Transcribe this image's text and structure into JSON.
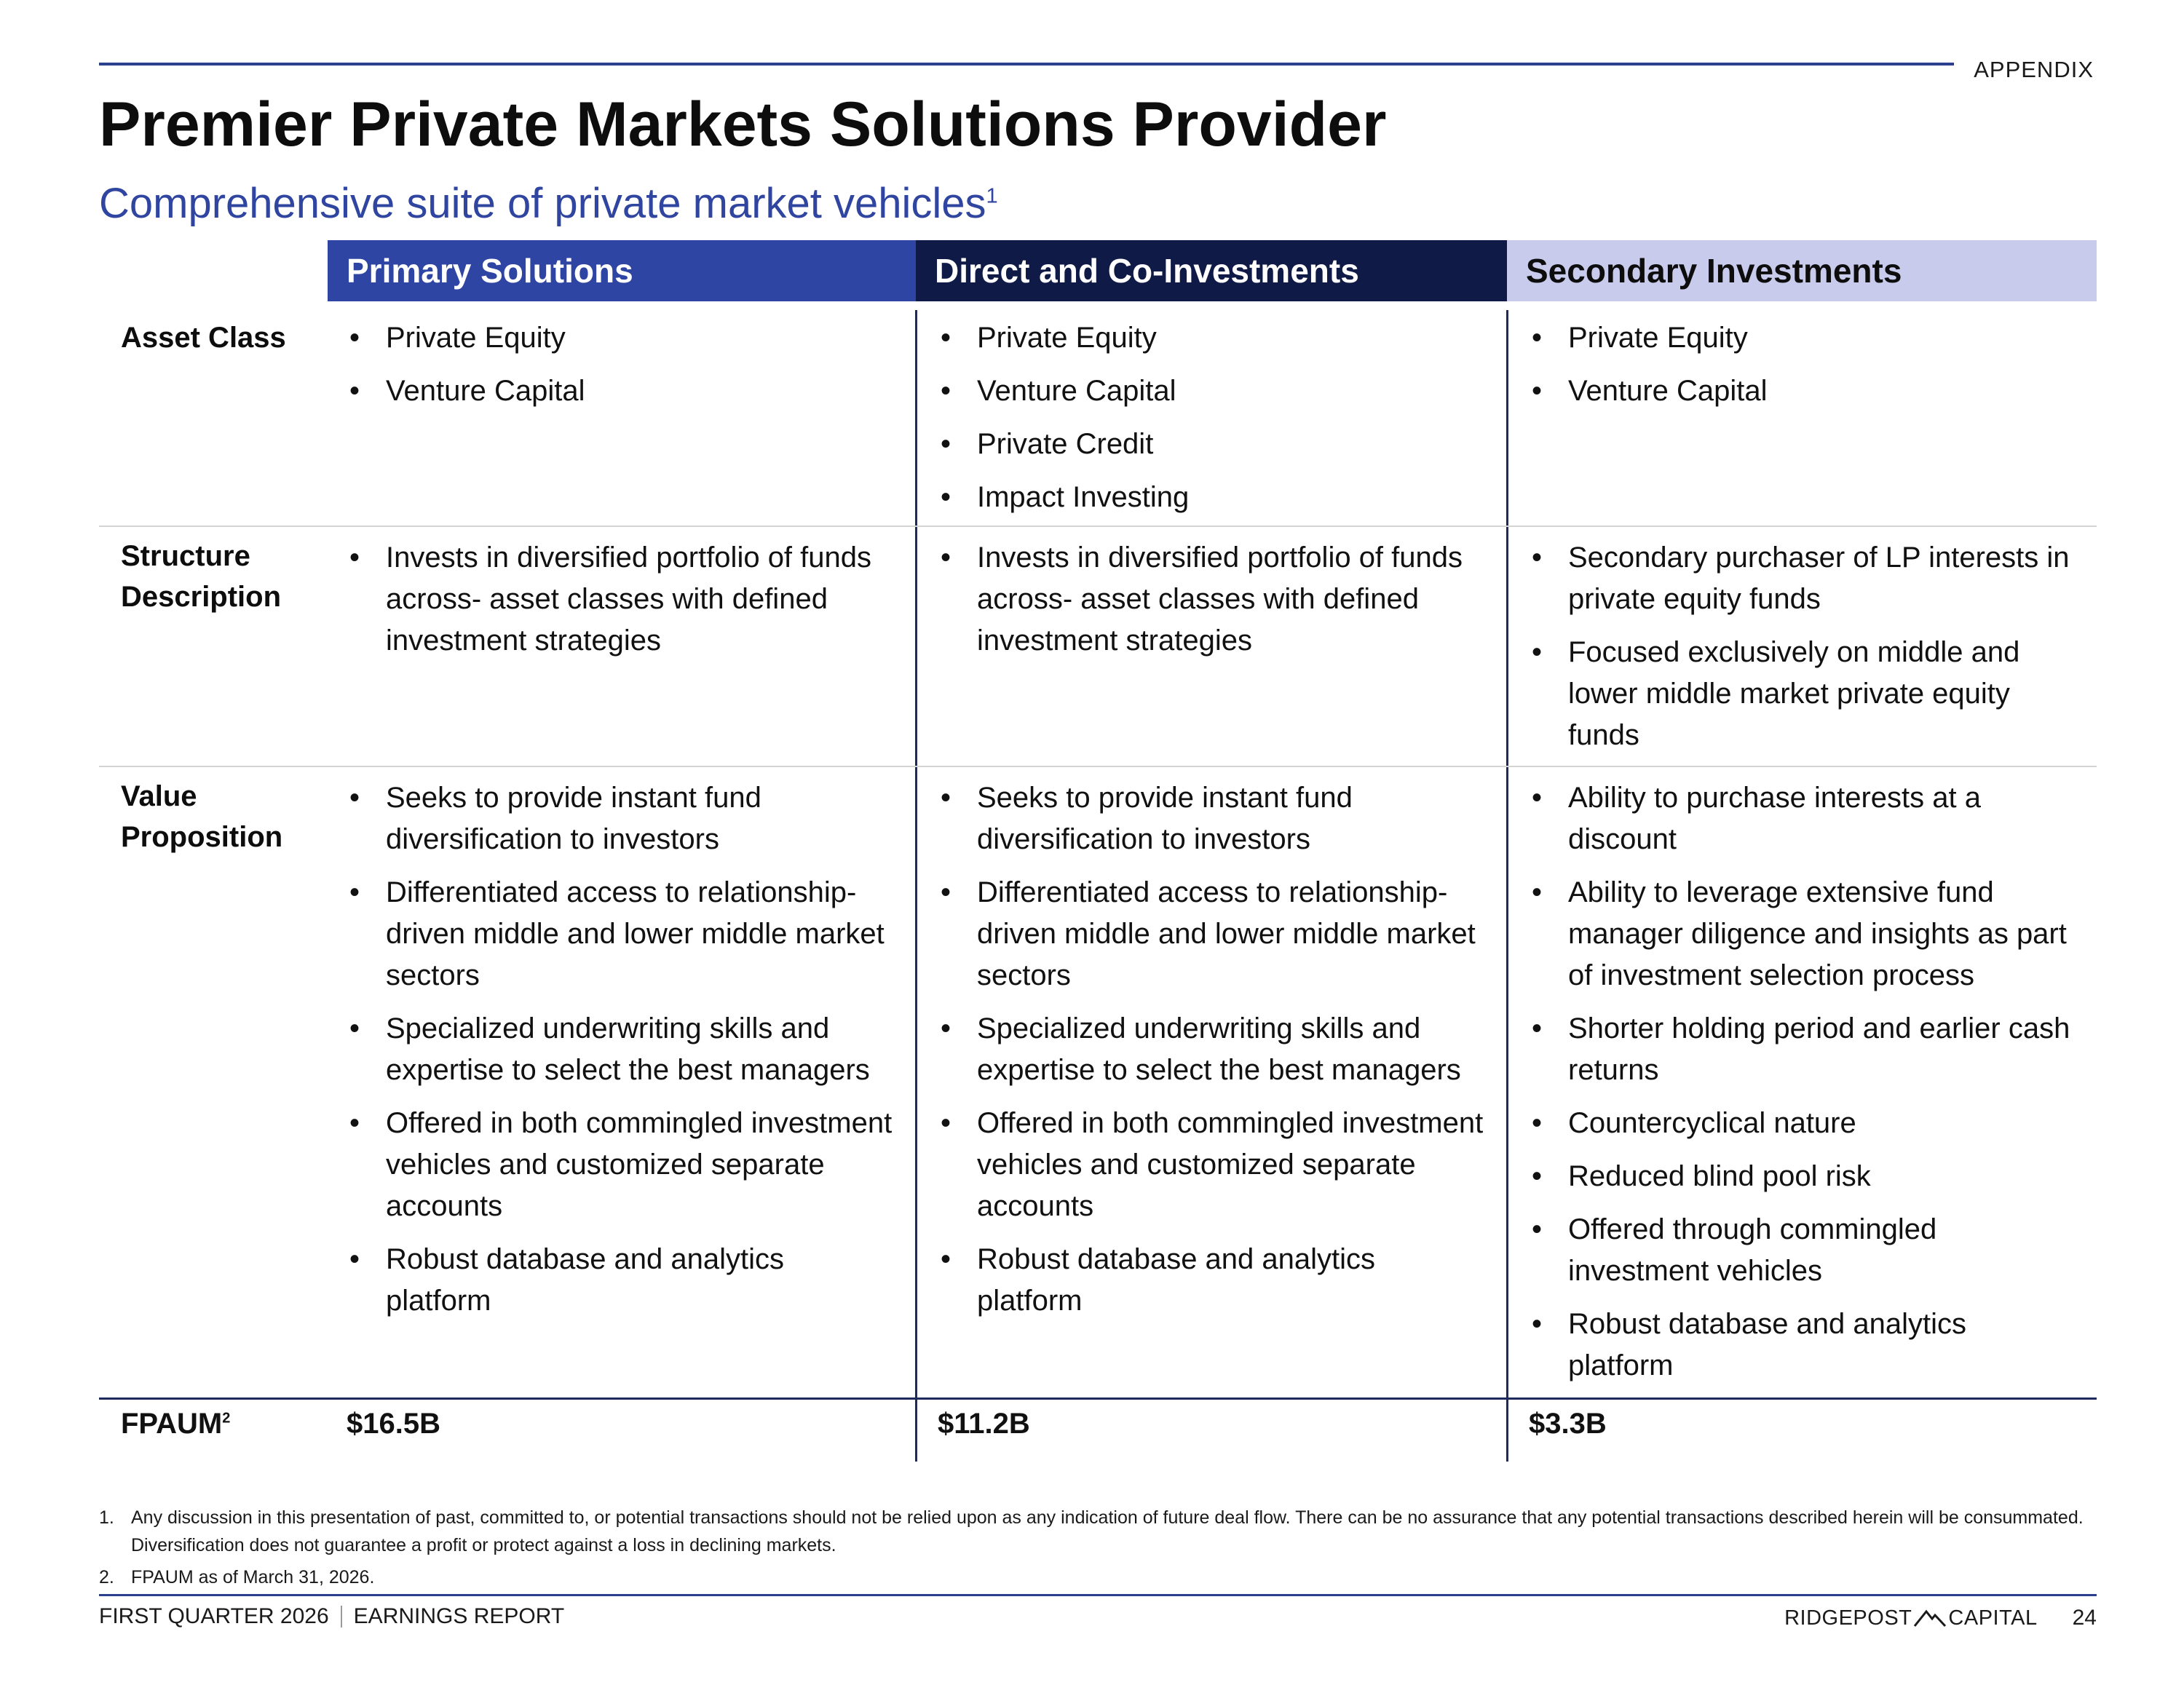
{
  "header": {
    "section_label": "APPENDIX",
    "title": "Premier Private Markets Solutions Provider",
    "subtitle": "Comprehensive suite of private market vehicles",
    "subtitle_footnote_ref": "1"
  },
  "columns": [
    {
      "header": "Primary Solutions",
      "asset_class": [
        "Private Equity",
        "Venture Capital"
      ],
      "structure_description": [
        "Invests in diversified portfolio of funds across- asset classes with defined investment strategies"
      ],
      "value_proposition": [
        "Seeks to provide instant fund diversification to investors",
        "Differentiated access to relationship-driven middle and lower middle market sectors",
        "Specialized underwriting skills and expertise to select the best managers",
        "Offered in both commingled investment vehicles and customized separate accounts",
        "Robust database and analytics platform"
      ],
      "fpaum": "$16.5B"
    },
    {
      "header": "Direct and Co-Investments",
      "asset_class": [
        "Private Equity",
        "Venture Capital",
        "Private Credit",
        "Impact Investing"
      ],
      "structure_description": [
        "Invests in diversified portfolio of funds across- asset classes with defined investment strategies"
      ],
      "value_proposition": [
        "Seeks to provide instant fund diversification to investors",
        "Differentiated access to relationship-driven middle and lower middle market sectors",
        "Specialized underwriting skills and expertise to select the best managers",
        "Offered in both commingled investment vehicles and customized separate accounts",
        "Robust database and analytics platform"
      ],
      "fpaum": "$11.2B"
    },
    {
      "header": "Secondary Investments",
      "asset_class": [
        "Private Equity",
        "Venture Capital"
      ],
      "structure_description": [
        "Secondary purchaser of LP interests in private equity funds",
        "Focused exclusively on middle and lower middle market private equity funds"
      ],
      "value_proposition": [
        "Ability to purchase interests at a discount",
        "Ability to leverage extensive fund manager diligence and insights as part of investment selection process",
        "Shorter holding period and earlier cash returns",
        "Countercyclical nature",
        "Reduced blind pool risk",
        "Offered through commingled investment vehicles",
        "Robust database and analytics platform"
      ],
      "fpaum": "$3.3B"
    }
  ],
  "row_labels": {
    "asset_class": "Asset Class",
    "structure_line1": "Structure",
    "structure_line2": "Description",
    "value_line1": "Value",
    "value_line2": "Proposition",
    "fpaum": "FPAUM",
    "fpaum_footnote_ref": "2"
  },
  "footnotes": [
    {
      "num": "1.",
      "text": "Any discussion in this presentation of past, committed to, or potential transactions should not be relied upon as any indication of future deal flow. There can be no assurance that any potential transactions described herein will be consummated. Diversification does not guarantee a profit or protect against a loss in declining markets."
    },
    {
      "num": "2.",
      "text": "FPAUM as of March 31, 2026."
    }
  ],
  "footer": {
    "left_a": "FIRST QUARTER 2026",
    "left_b": "EARNINGS REPORT",
    "logo_left": "RIDGEPOST",
    "logo_right": "CAPITAL",
    "page_number": "24"
  },
  "colors": {
    "primary_header": "#2e45a3",
    "direct_header": "#0f1a47",
    "secondary_header": "#c8cbec",
    "subtitle": "#2f45a0",
    "rule": "#2b3f8f"
  }
}
